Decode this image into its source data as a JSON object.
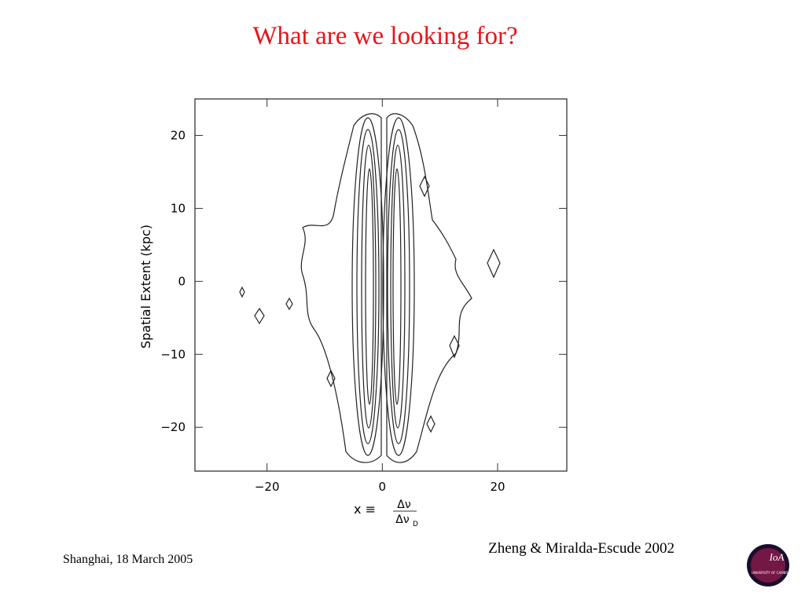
{
  "slide": {
    "title": "What are we looking for?",
    "citation": "Zheng & Miralda-Escude 2002",
    "footer": "Shanghai, 18 March  2005",
    "logo": {
      "text": "IoA",
      "subtext": "UNIVERSITY OF CAMBRIDGE"
    }
  },
  "figure": {
    "x_label": {
      "lhs": "x ≡",
      "numerator": "Δν",
      "denominator": "Δν",
      "subscript": "D"
    },
    "y_label": "Spatial Extent (kpc)",
    "xlim": [
      -32.5,
      32
    ],
    "ylim": [
      -26,
      25
    ],
    "xticks": [
      {
        "value": -20,
        "label": "−20"
      },
      0,
      20
    ],
    "yticks": [
      {
        "value": -20,
        "label": "−20"
      },
      {
        "value": -10,
        "label": "−10"
      },
      0,
      10,
      20
    ]
  }
}
